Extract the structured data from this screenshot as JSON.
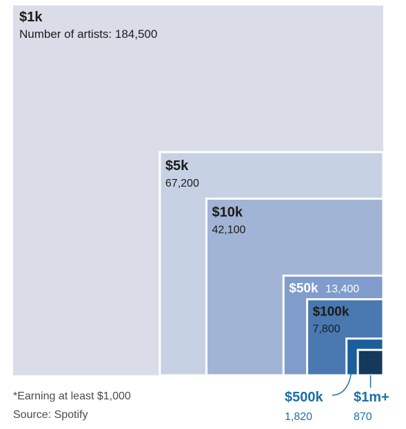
{
  "chart_data": {
    "type": "treemap",
    "unit_label": "Number of artists",
    "tiers": [
      {
        "name": "$1k",
        "count": 184500,
        "count_label": "184,500",
        "color": "#dadde8"
      },
      {
        "name": "$5k",
        "count": 67200,
        "count_label": "67,200",
        "color": "#c6d1e3"
      },
      {
        "name": "$10k",
        "count": 42100,
        "count_label": "42,100",
        "color": "#a2b4d5"
      },
      {
        "name": "$50k",
        "count": 13400,
        "count_label": "13,400",
        "color": "#7f9ccc"
      },
      {
        "name": "$100k",
        "count": 7800,
        "count_label": "7,800",
        "color": "#4a78b0"
      },
      {
        "name": "$500k",
        "count": 1820,
        "count_label": "1,820",
        "color": "#1a5f9b"
      },
      {
        "name": "$1m+",
        "count": 870,
        "count_label": "870",
        "color": "#14395a"
      }
    ]
  },
  "labels": {
    "top_name": "$1k",
    "top_count": "Number of artists: 184,500",
    "footnote": "*Earning at least $1,000",
    "source": "Source: Spotify"
  },
  "colors": {
    "callout_text": "#1a6fa8",
    "border": "#ffffff"
  }
}
